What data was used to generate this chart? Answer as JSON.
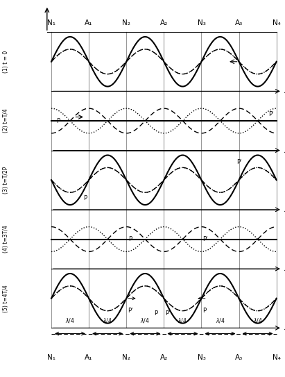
{
  "fig_width": 4.11,
  "fig_height": 5.43,
  "dpi": 100,
  "n_rows": 5,
  "x_positions": [
    0,
    0.5,
    1.0,
    1.5,
    2.0,
    2.5,
    3.0
  ],
  "x_labels_top": [
    "N₁",
    "A₁",
    "N₂",
    "A₂",
    "N₃",
    "A₃",
    "N₄"
  ],
  "x_labels_bot": [
    "N₁",
    "A₁",
    "N₂",
    "A₂",
    "N₃",
    "A₃",
    "N₄"
  ],
  "row_labels": [
    "(1) t = 0",
    "(2) t=T/4",
    "(3) t=T/2P",
    "(4) t=3T/4",
    "(5) t=4T/4"
  ],
  "amplitude": 0.38,
  "background_color": "#ffffff",
  "wave_color_solid": "#000000",
  "wave_color_dash": "#000000",
  "wave_color_dot": "#000000",
  "grid_color": "#888888",
  "axis_color": "#000000"
}
